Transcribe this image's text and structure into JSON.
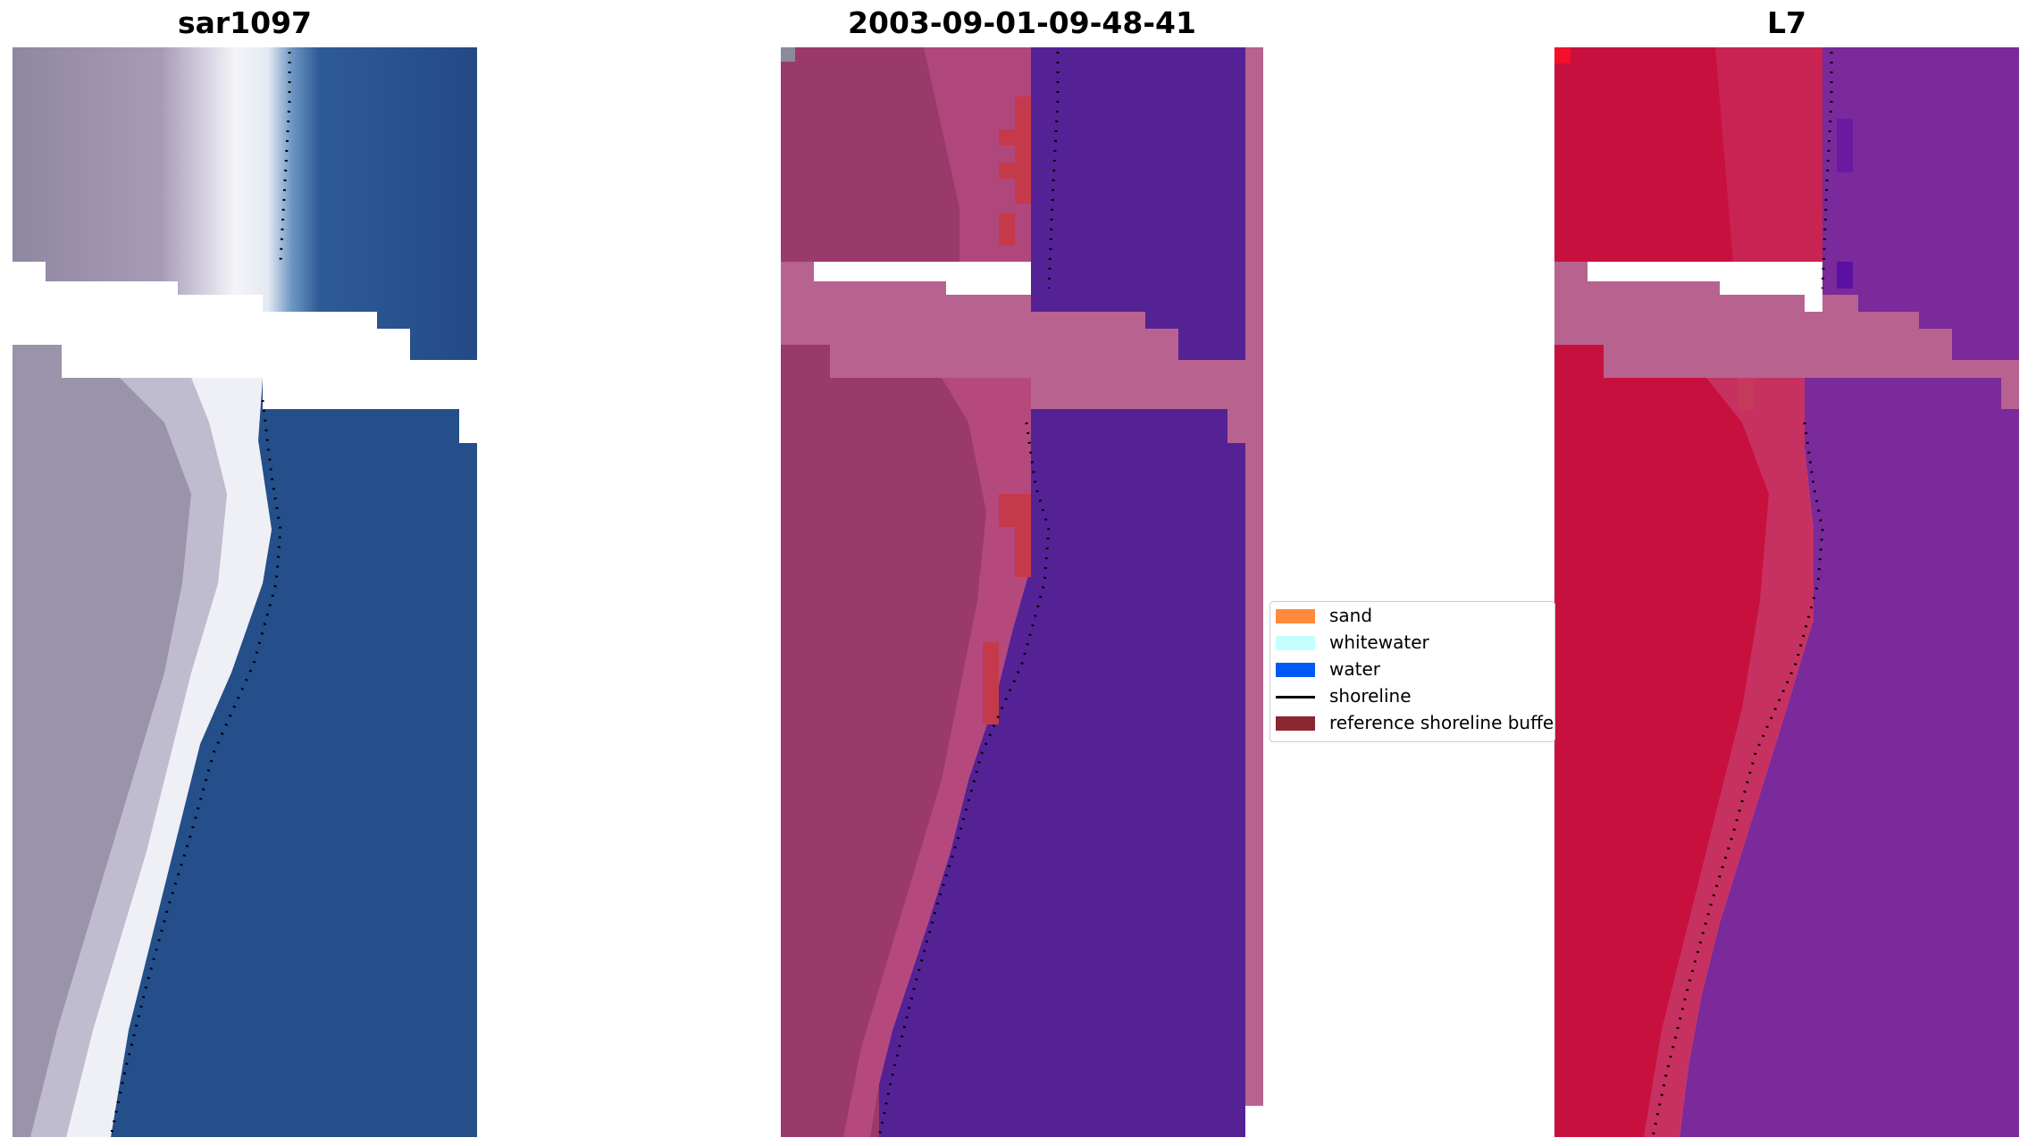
{
  "panels": [
    {
      "title": "sar1097"
    },
    {
      "title": "2003-09-01-09-48-41"
    },
    {
      "title": "L7"
    }
  ],
  "legend": {
    "items": [
      {
        "label": "sand",
        "color": "#ff8a3c",
        "kind": "patch"
      },
      {
        "label": "whitewater",
        "color": "#c4ffff",
        "kind": "patch"
      },
      {
        "label": "water",
        "color": "#0059f5",
        "kind": "patch"
      },
      {
        "label": "shoreline",
        "color": "#000000",
        "kind": "line"
      },
      {
        "label": "reference shoreline buffer",
        "color": "#8b2730",
        "kind": "patch"
      }
    ]
  },
  "colors": {
    "no_data_mask": "#b8628f",
    "classified_water": "#552295",
    "classified_land": "#9a3a6a",
    "reference_buffer": "#c53a4a",
    "l7_land": "#c8103f",
    "l7_water": "#7a2a9a",
    "rgb_water": "#244f8a",
    "rgb_land": "#8d8aa4",
    "rgb_whitewater": "#eef0f6"
  }
}
